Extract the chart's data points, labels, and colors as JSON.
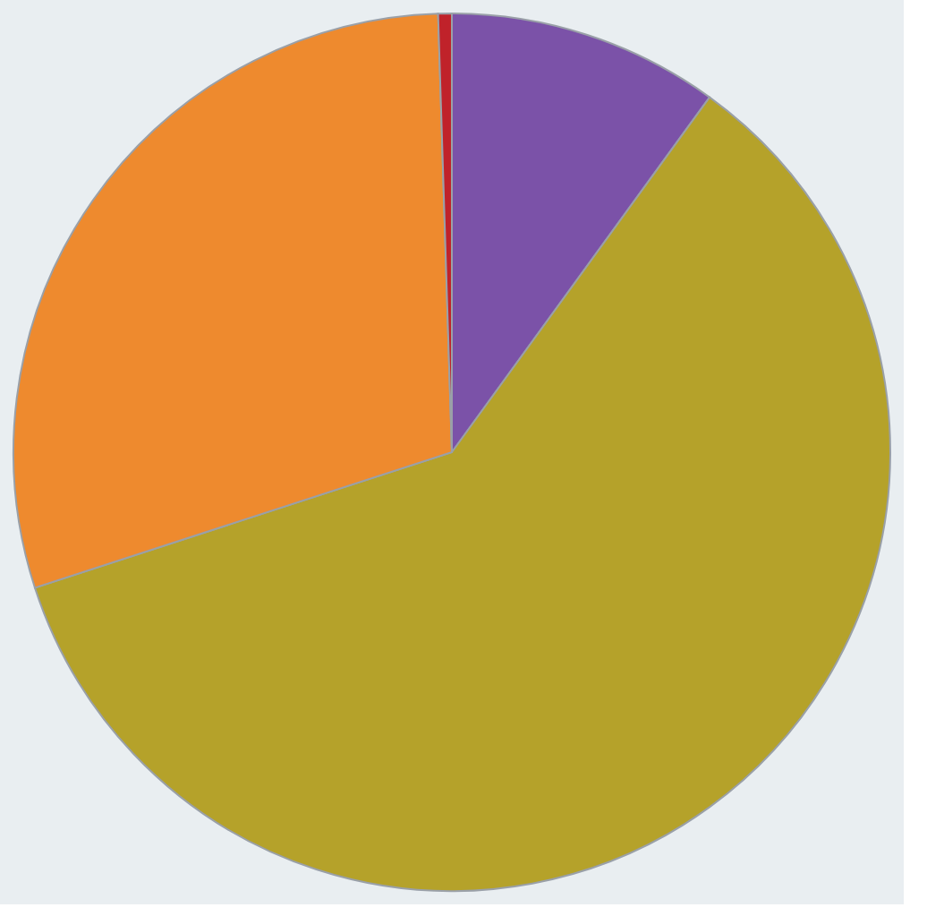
{
  "chart_data": {
    "type": "pie",
    "categories": [
      null,
      null,
      null,
      null
    ],
    "values": [
      10,
      60,
      29.5,
      0.5
    ],
    "colors": [
      "#7b52a8",
      "#b5a22a",
      "#ee8a2e",
      "#c0222a"
    ],
    "legend": false
  }
}
